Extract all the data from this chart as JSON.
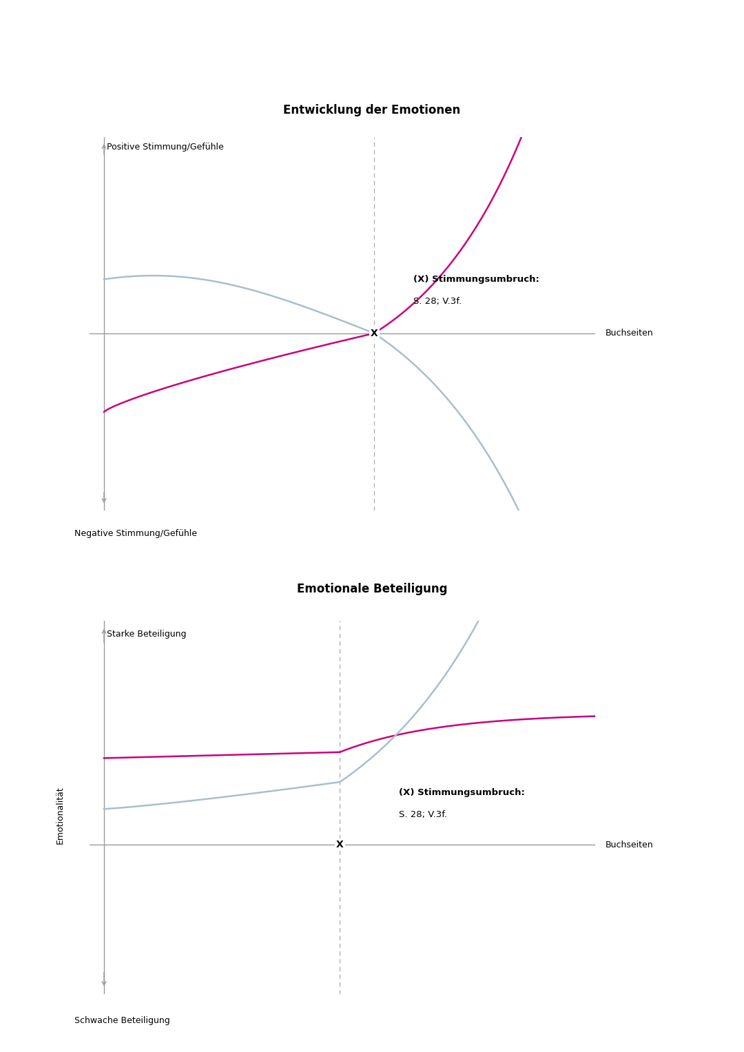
{
  "title1": "Entwicklung der Emotionen",
  "title2": "Emotionale Beteiligung",
  "buchseiten_label": "Buchseiten",
  "emotionalitaet_label": "Emotionalität",
  "pos_label": "Positive Stimmung/Gefühle",
  "neg_label": "Negative Stimmung/Gefühle",
  "starke_label": "Starke Beteiligung",
  "schwache_label": "Schwache Beteiligung",
  "annotation_bold": "(X) Stimmungsumbruch:",
  "annotation_normal": "S. 28; V.3f.",
  "x_marker_label": "X",
  "pink_color": "#cc007a",
  "blue_color": "#a8bfcc",
  "axis_color": "#999999",
  "dashed_color": "#aaaaaa",
  "background": "#ffffff",
  "title_fontsize": 12,
  "label_fontsize": 9,
  "annotation_fontsize": 9.5
}
